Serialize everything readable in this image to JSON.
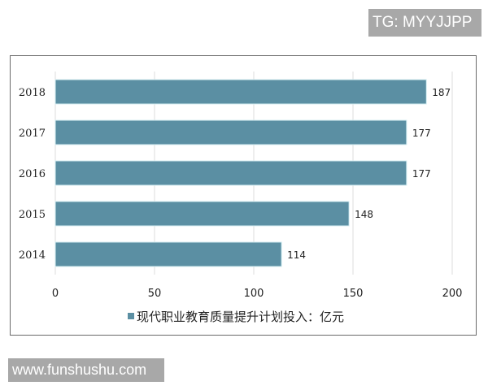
{
  "watermarks": {
    "top": "TG: MYYJJPP",
    "bottom": "www.funshushu.com"
  },
  "chart_data": {
    "type": "bar",
    "orientation": "horizontal",
    "categories": [
      "2018",
      "2017",
      "2016",
      "2015",
      "2014"
    ],
    "series": [
      {
        "name": "现代职业教育质量提升计划投入：亿元",
        "values": [
          187,
          177,
          177,
          148,
          114
        ],
        "color": "#5b8fa3"
      }
    ],
    "xlim": [
      0,
      200
    ],
    "xticks": [
      "0",
      "50",
      "100",
      "150",
      "200"
    ],
    "grid": "vertical",
    "legend": "bottom",
    "data_labels": true
  }
}
